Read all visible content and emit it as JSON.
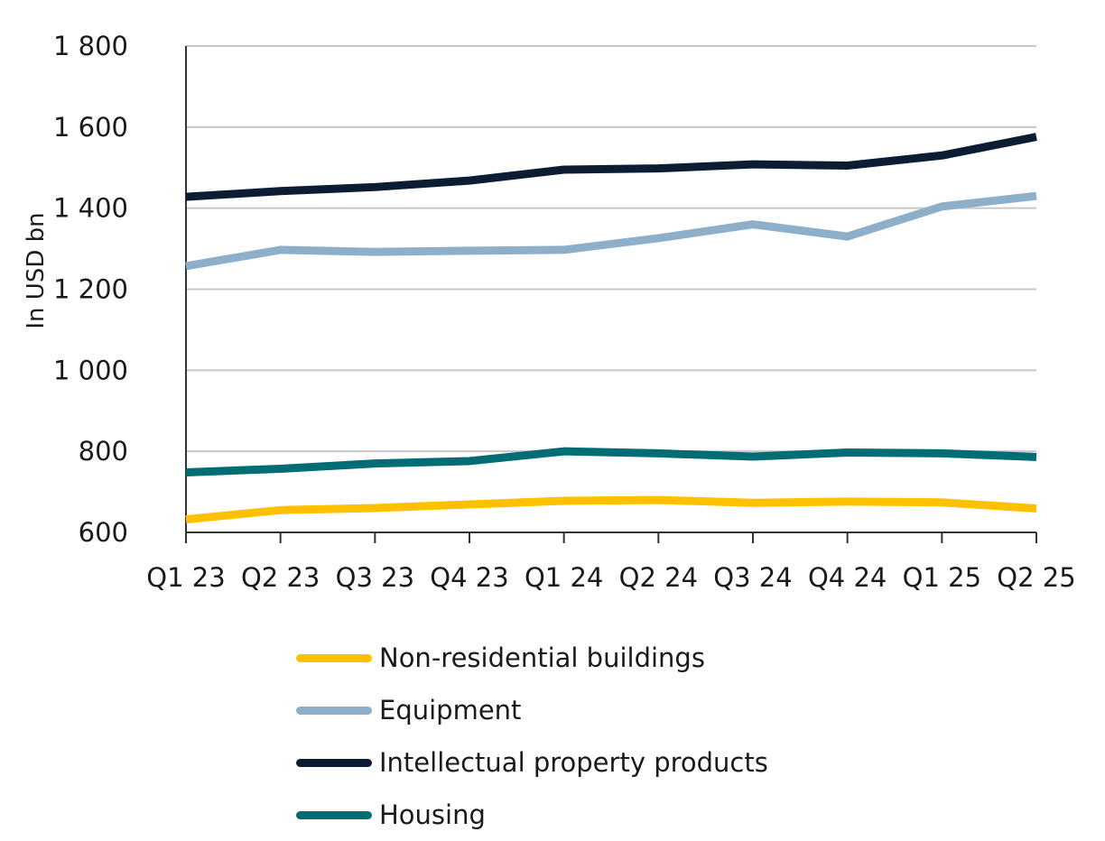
{
  "chart_data": {
    "type": "line",
    "title": "",
    "xlabel": "",
    "ylabel": "In USD bn",
    "ylim": [
      600,
      1800
    ],
    "yticks": [
      600,
      800,
      1000,
      1200,
      1400,
      1600,
      1800
    ],
    "ytick_labels": [
      "600",
      "800",
      "1 000",
      "1 200",
      "1 400",
      "1 600",
      "1 800"
    ],
    "grid": true,
    "legend_position": "bottom",
    "categories": [
      "Q1 23",
      "Q2 23",
      "Q3 23",
      "Q4 23",
      "Q1 24",
      "Q2 24",
      "Q3 24",
      "Q4 24",
      "Q1 25",
      "Q2 25"
    ],
    "series": [
      {
        "name": "Non-residential buildings",
        "color": "#FFC000",
        "values": [
          632,
          655,
          660,
          669,
          678,
          680,
          673,
          676,
          674,
          659
        ]
      },
      {
        "name": "Equipment",
        "color": "#8EAFCA",
        "values": [
          1257,
          1297,
          1292,
          1295,
          1297,
          1326,
          1360,
          1330,
          1404,
          1430
        ]
      },
      {
        "name": "Intellectual property products",
        "color": "#0B1C33",
        "values": [
          1428,
          1442,
          1452,
          1468,
          1495,
          1498,
          1508,
          1505,
          1530,
          1576
        ]
      },
      {
        "name": "Housing",
        "color": "#006D75",
        "values": [
          748,
          757,
          770,
          776,
          800,
          795,
          787,
          797,
          795,
          786
        ]
      }
    ]
  }
}
